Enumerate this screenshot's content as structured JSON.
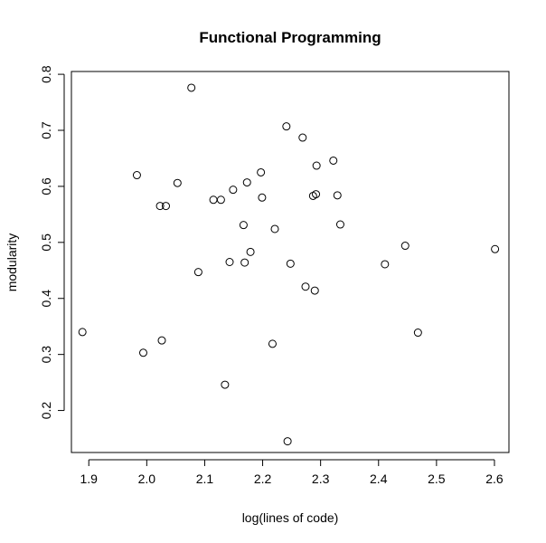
{
  "chart_data": {
    "type": "scatter",
    "title": "Functional Programming",
    "xlabel": "log(lines of code)",
    "ylabel": "modularity",
    "xlim": [
      1.87,
      2.625
    ],
    "ylim": [
      0.125,
      0.805
    ],
    "xticks": [
      "1.9",
      "2.0",
      "2.1",
      "2.2",
      "2.3",
      "2.4",
      "2.5",
      "2.6"
    ],
    "yticks": [
      "0.2",
      "0.3",
      "0.4",
      "0.5",
      "0.6",
      "0.7",
      "0.8"
    ],
    "grid": false,
    "marker": "open-circle",
    "points": [
      {
        "x": 1.889,
        "y": 0.34
      },
      {
        "x": 1.983,
        "y": 0.62
      },
      {
        "x": 1.994,
        "y": 0.303
      },
      {
        "x": 2.023,
        "y": 0.565
      },
      {
        "x": 2.026,
        "y": 0.325
      },
      {
        "x": 2.033,
        "y": 0.565
      },
      {
        "x": 2.053,
        "y": 0.606
      },
      {
        "x": 2.077,
        "y": 0.776
      },
      {
        "x": 2.089,
        "y": 0.447
      },
      {
        "x": 2.115,
        "y": 0.576
      },
      {
        "x": 2.128,
        "y": 0.576
      },
      {
        "x": 2.135,
        "y": 0.246
      },
      {
        "x": 2.143,
        "y": 0.465
      },
      {
        "x": 2.149,
        "y": 0.594
      },
      {
        "x": 2.167,
        "y": 0.531
      },
      {
        "x": 2.169,
        "y": 0.464
      },
      {
        "x": 2.173,
        "y": 0.607
      },
      {
        "x": 2.179,
        "y": 0.483
      },
      {
        "x": 2.197,
        "y": 0.625
      },
      {
        "x": 2.199,
        "y": 0.58
      },
      {
        "x": 2.217,
        "y": 0.319
      },
      {
        "x": 2.221,
        "y": 0.524
      },
      {
        "x": 2.241,
        "y": 0.707
      },
      {
        "x": 2.243,
        "y": 0.145
      },
      {
        "x": 2.248,
        "y": 0.462
      },
      {
        "x": 2.269,
        "y": 0.687
      },
      {
        "x": 2.274,
        "y": 0.421
      },
      {
        "x": 2.287,
        "y": 0.583
      },
      {
        "x": 2.29,
        "y": 0.414
      },
      {
        "x": 2.292,
        "y": 0.586
      },
      {
        "x": 2.293,
        "y": 0.637
      },
      {
        "x": 2.322,
        "y": 0.646
      },
      {
        "x": 2.329,
        "y": 0.584
      },
      {
        "x": 2.334,
        "y": 0.532
      },
      {
        "x": 2.411,
        "y": 0.461
      },
      {
        "x": 2.446,
        "y": 0.494
      },
      {
        "x": 2.468,
        "y": 0.339
      },
      {
        "x": 2.601,
        "y": 0.488
      }
    ]
  }
}
